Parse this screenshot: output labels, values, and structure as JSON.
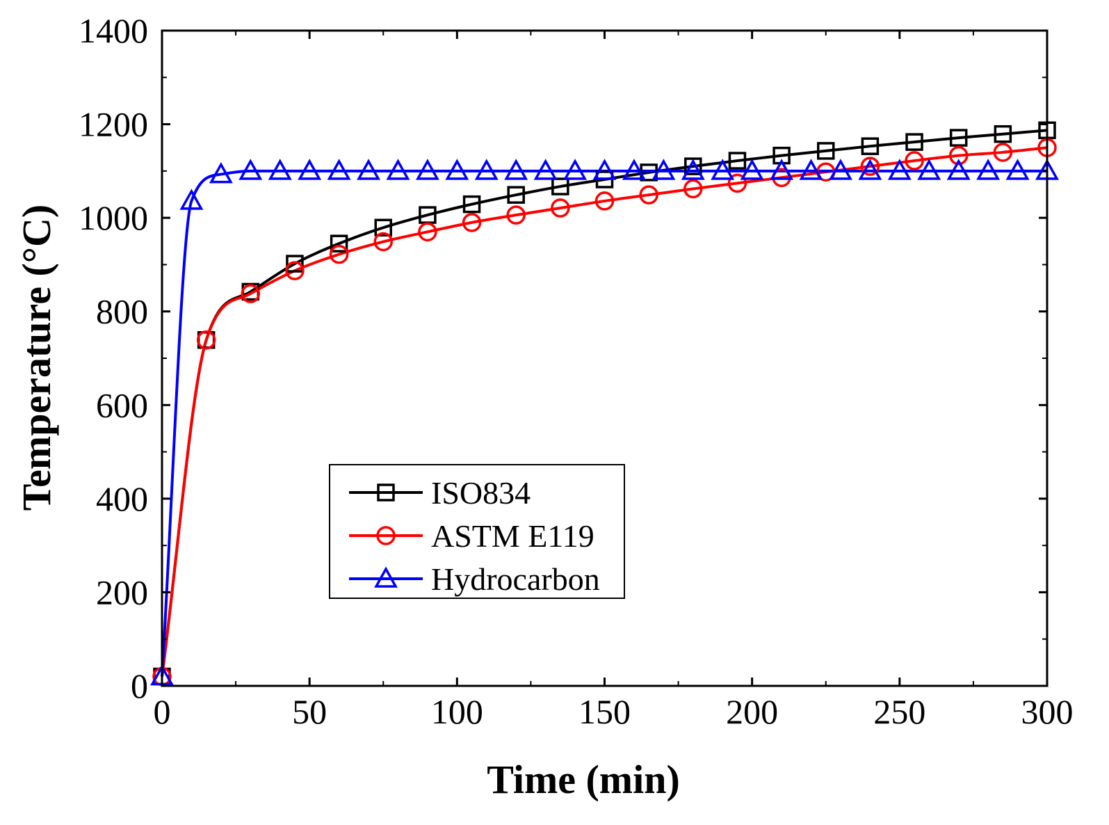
{
  "chart_data": {
    "type": "line",
    "title": "",
    "xlabel": "Time (min)",
    "ylabel": "Temperature (°C)",
    "xlim": [
      0,
      300
    ],
    "ylim": [
      0,
      1400
    ],
    "xticks": [
      0,
      50,
      100,
      150,
      200,
      250,
      300
    ],
    "yticks": [
      0,
      200,
      400,
      600,
      800,
      1000,
      1200,
      1400
    ],
    "xticklabels": [
      "0",
      "50",
      "100",
      "150",
      "200",
      "250",
      "300"
    ],
    "yticklabels": [
      "0",
      "200",
      "400",
      "600",
      "800",
      "1000",
      "1200",
      "1400"
    ],
    "grid": false,
    "legend_position": "lower-center",
    "series": [
      {
        "name": "ISO834",
        "color": "#000000",
        "marker": "square",
        "x": [
          0,
          15,
          30,
          45,
          60,
          75,
          90,
          105,
          120,
          135,
          150,
          165,
          180,
          195,
          210,
          225,
          240,
          255,
          270,
          285,
          300
        ],
        "y": [
          20,
          739,
          842,
          902,
          945,
          979,
          1006,
          1029,
          1049,
          1067,
          1082,
          1097,
          1110,
          1122,
          1133,
          1143,
          1153,
          1162,
          1171,
          1179,
          1187
        ]
      },
      {
        "name": "ASTM E119",
        "color": "#ff0000",
        "marker": "circle",
        "x": [
          0,
          15,
          30,
          45,
          60,
          75,
          90,
          105,
          120,
          135,
          150,
          165,
          180,
          195,
          210,
          225,
          240,
          255,
          270,
          285,
          300
        ],
        "y": [
          20,
          739,
          838,
          887,
          922,
          949,
          970,
          990,
          1006,
          1021,
          1036,
          1049,
          1062,
          1074,
          1086,
          1098,
          1110,
          1122,
          1133,
          1140,
          1150
        ]
      },
      {
        "name": "Hydrocarbon",
        "color": "#0000ff",
        "marker": "triangle",
        "x": [
          0,
          10,
          20,
          30,
          40,
          50,
          60,
          70,
          80,
          90,
          100,
          110,
          120,
          130,
          140,
          150,
          160,
          170,
          180,
          190,
          200,
          210,
          220,
          230,
          240,
          250,
          260,
          270,
          280,
          290,
          300
        ],
        "y": [
          20,
          1036,
          1093,
          1100,
          1100,
          1100,
          1100,
          1100,
          1100,
          1100,
          1100,
          1100,
          1100,
          1100,
          1100,
          1100,
          1100,
          1100,
          1100,
          1100,
          1100,
          1100,
          1100,
          1100,
          1100,
          1100,
          1100,
          1100,
          1100,
          1100,
          1100
        ]
      }
    ]
  }
}
